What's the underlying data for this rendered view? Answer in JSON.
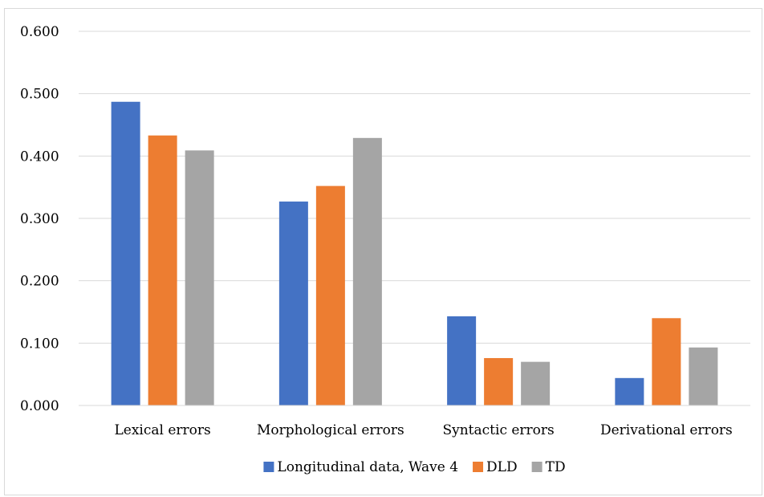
{
  "chart_data": {
    "type": "bar",
    "title": "",
    "xlabel": "",
    "ylabel": "",
    "categories": [
      "Lexical errors",
      "Morphological errors",
      "Syntactic errors",
      "Derivational errors"
    ],
    "series": [
      {
        "name": "Longitudinal data, Wave 4",
        "color": "#4472C4",
        "values": [
          0.487,
          0.327,
          0.143,
          0.044
        ]
      },
      {
        "name": "DLD",
        "color": "#ED7D31",
        "values": [
          0.433,
          0.352,
          0.076,
          0.14
        ]
      },
      {
        "name": "TD",
        "color": "#A5A5A5",
        "values": [
          0.409,
          0.429,
          0.07,
          0.093
        ]
      }
    ],
    "ylim": [
      0,
      0.6
    ],
    "yticks": [
      "0.000",
      "0.100",
      "0.200",
      "0.300",
      "0.400",
      "0.500",
      "0.600"
    ],
    "grid": true,
    "legend_position": "bottom"
  }
}
